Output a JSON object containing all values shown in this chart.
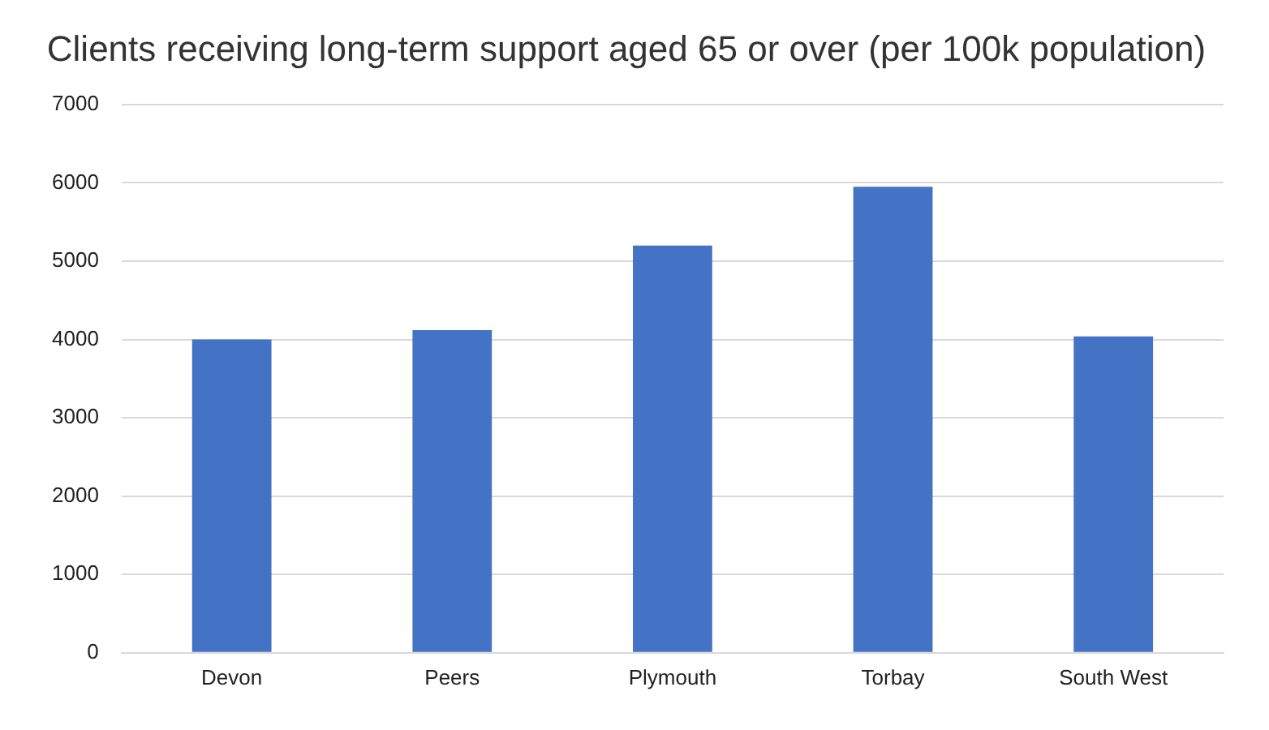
{
  "chart_data": {
    "type": "bar",
    "title": "Clients receiving long-term support aged 65 or over (per 100k population)",
    "categories": [
      "Devon",
      "Peers",
      "Plymouth",
      "Torbay",
      "South West"
    ],
    "values": [
      4000,
      4120,
      5200,
      5950,
      4040
    ],
    "color": "#4472c4",
    "ylim": [
      0,
      7000
    ],
    "yticks": [
      0,
      1000,
      2000,
      3000,
      4000,
      5000,
      6000,
      7000
    ],
    "grid": "y"
  }
}
